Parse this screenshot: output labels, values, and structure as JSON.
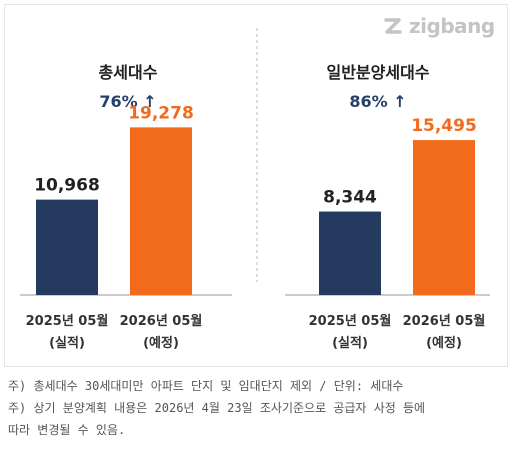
{
  "brand": {
    "name": "zigbang"
  },
  "colors": {
    "actual": "#243a5e",
    "planned": "#f26b1d",
    "divider": "#bbbbbb",
    "baseline": "#999999"
  },
  "chart_data": [
    {
      "type": "bar",
      "title": "총세대수",
      "change": "76% ↑",
      "categories": [
        "2025년 05월\n(실적)",
        "2026년 05월\n(예정)"
      ],
      "values": [
        10968,
        19278
      ],
      "value_labels": [
        "10,968",
        "19,278"
      ],
      "ylim": [
        0,
        23000
      ]
    },
    {
      "type": "bar",
      "title": "일반분양세대수",
      "change": "86% ↑",
      "categories": [
        "2025년 05월\n(실적)",
        "2026년 05월\n(예정)"
      ],
      "values": [
        8344,
        15495
      ],
      "value_labels": [
        "8,344",
        "15,495"
      ],
      "ylim": [
        0,
        20000
      ]
    }
  ],
  "notes": [
    "주) 총세대수 30세대미만 아파트  단지 및 임대단지 제외 / 단위: 세대수",
    "주) 상기 분양계획 내용은 2026년 4월 23일 조사기준으로 공급자 사정 등에",
    "따라 변경될 수 있음."
  ]
}
